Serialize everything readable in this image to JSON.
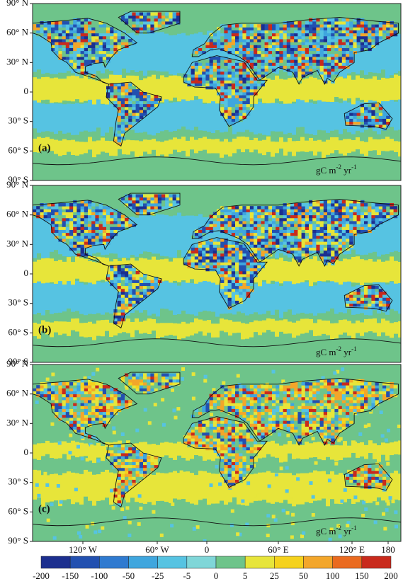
{
  "latitude_labels": [
    "90° N",
    "60° N",
    "30° N",
    "0",
    "30° S",
    "60° S",
    "90° S"
  ],
  "longitude_labels": [
    "120° W",
    "60° W",
    "0",
    "60° E",
    "120° E",
    "180"
  ],
  "unit": {
    "base1": "gC m",
    "exp1": "-2",
    "base2": " yr",
    "exp2": "-1"
  },
  "panels": [
    {
      "label": "(a)"
    },
    {
      "label": "(b)"
    },
    {
      "label": "(c)"
    }
  ],
  "colorbar": {
    "ticks": [
      -200,
      -150,
      -100,
      -50,
      -25,
      -5,
      0,
      5,
      25,
      50,
      100,
      150,
      200
    ],
    "colors": [
      "#1c2f8f",
      "#2250b0",
      "#2f7ad0",
      "#3fa6de",
      "#56c3e2",
      "#7fd6d8",
      "#6ec48a",
      "#e7e53a",
      "#f5d21c",
      "#f3a62a",
      "#ea6a1f",
      "#c92a1c"
    ]
  }
}
